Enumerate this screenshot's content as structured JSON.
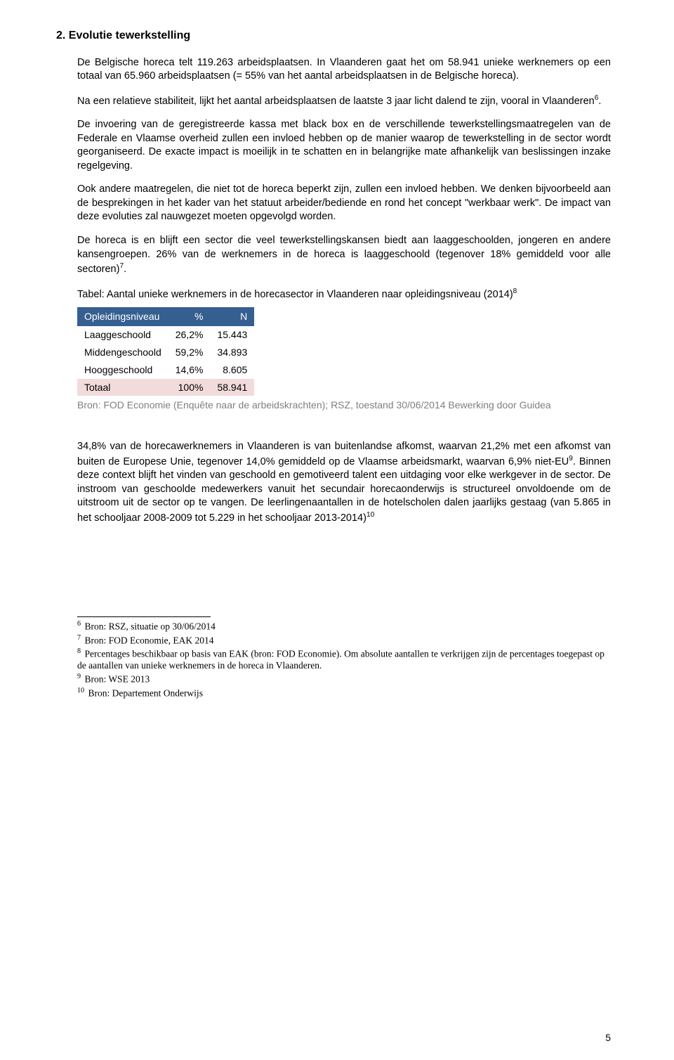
{
  "heading": "2. Evolutie tewerkstelling",
  "paragraphs": {
    "p1": "De Belgische horeca telt 119.263 arbeidsplaatsen.  In Vlaanderen gaat het om 58.941 unieke werknemers op een totaal van 65.960 arbeidsplaatsen (= 55% van het aantal arbeidsplaatsen in de Belgische horeca).",
    "p2_a": "Na een relatieve stabiliteit, lijkt het aantal arbeidsplaatsen de laatste 3 jaar licht dalend te zijn, vooral in Vlaanderen",
    "p2_sup": "6",
    "p2_b": ".",
    "p3": "De invoering van de geregistreerde kassa met black box en de verschillende tewerkstellingsmaatregelen van de Federale en Vlaamse overheid zullen een invloed hebben op de manier waarop de tewerkstelling in de sector wordt georganiseerd. De exacte impact is moeilijk in te schatten en in belangrijke mate afhankelijk van beslissingen inzake regelgeving.",
    "p4": "Ook andere maatregelen, die niet tot de horeca beperkt zijn, zullen een invloed hebben. We denken bijvoorbeeld aan de besprekingen in het kader van het statuut arbeider/bediende en rond het concept \"werkbaar werk\". De impact van deze evoluties zal nauwgezet moeten opgevolgd worden.",
    "p5_a": "De horeca is en blijft een sector die veel tewerkstellingskansen biedt aan laaggeschoolden, jongeren en andere kansengroepen. 26% van de werknemers in de horeca is laaggeschoold (tegenover 18% gemiddeld voor alle sectoren)",
    "p5_sup": "7",
    "p5_b": ".",
    "cap_a": "Tabel: Aantal unieke werknemers in de horecasector in Vlaanderen naar opleidingsniveau (2014)",
    "cap_sup": "8",
    "p6_a": "34,8% van de horecawerknemers in Vlaanderen is van buitenlandse afkomst, waarvan 21,2% met een afkomst van buiten de Europese Unie, tegenover 14,0% gemiddeld op de Vlaamse arbeidsmarkt, waarvan 6,9% niet-EU",
    "p6_sup": "9",
    "p6_b": ". Binnen deze context blijft het vinden van geschoold en gemotiveerd talent een uitdaging voor elke werkgever in de sector. De instroom van geschoolde medewerkers vanuit het secundair horecaonderwijs is structureel onvoldoende om de uitstroom uit de sector op te vangen. De leerlingenaantallen in de hotelscholen dalen jaarlijks gestaag (van 5.865 in het schooljaar 2008-2009 tot 5.229 in het schooljaar 2013-2014)",
    "p6_sup2": "10"
  },
  "table": {
    "headers": {
      "c1": "Opleidingsniveau",
      "c2": "%",
      "c3": "N"
    },
    "rows": [
      {
        "c1": "Laaggeschoold",
        "c2": "26,2%",
        "c3": "15.443"
      },
      {
        "c1": "Middengeschoold",
        "c2": "59,2%",
        "c3": "34.893"
      },
      {
        "c1": "Hooggeschoold",
        "c2": "14,6%",
        "c3": "8.605"
      }
    ],
    "total": {
      "c1": "Totaal",
      "c2": "100%",
      "c3": "58.941"
    },
    "header_bg": "#365f91",
    "total_bg": "#f2dbdb"
  },
  "source": "Bron: FOD Economie (Enquête naar de arbeidskrachten); RSZ, toestand 30/06/2014 Bewerking door Guidea",
  "footnotes": [
    {
      "n": "6",
      "t": "Bron: RSZ, situatie op 30/06/2014"
    },
    {
      "n": "7",
      "t": "Bron: FOD Economie, EAK 2014"
    },
    {
      "n": "8",
      "t": "Percentages beschikbaar op basis van EAK (bron: FOD Economie). Om absolute aantallen te verkrijgen zijn de percentages  toegepast op de aantallen van unieke werknemers in de horeca in Vlaanderen."
    },
    {
      "n": "9",
      "t": "Bron: WSE 2013"
    },
    {
      "n": "10",
      "t": "Bron: Departement Onderwijs"
    }
  ],
  "page_number": "5"
}
